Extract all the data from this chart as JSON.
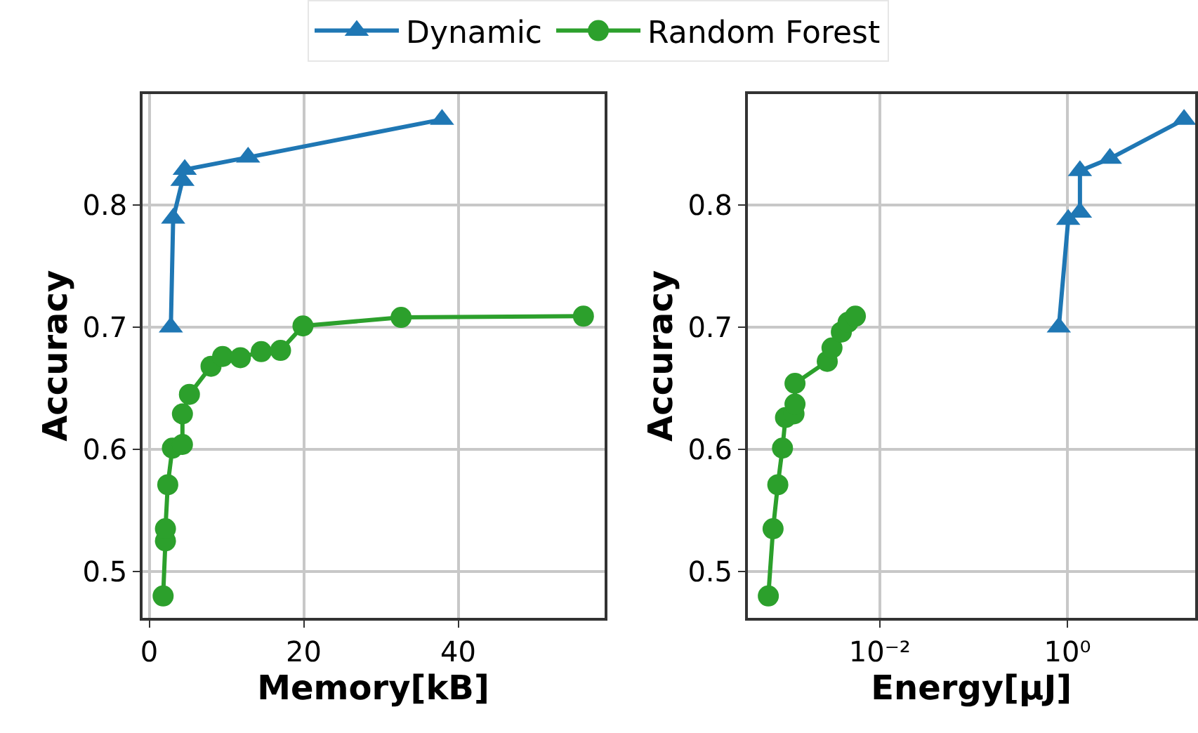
{
  "chart_data": [
    {
      "type": "line",
      "xlabel": "Memory[kB]",
      "ylabel": "Accuracy",
      "xlim": [
        -0.9,
        58.9
      ],
      "ylim": [
        0.462,
        0.891
      ],
      "xticks": [
        0,
        20,
        40
      ],
      "yticks": [
        0.5,
        0.6,
        0.7,
        0.8
      ],
      "grid": true,
      "legend": "top",
      "series": [
        {
          "name": "Dynamic",
          "color": "#1f77b4",
          "marker": "triangle",
          "x": [
            2.8,
            3.1,
            4.3,
            4.6,
            12.8,
            37.9
          ],
          "values": [
            0.7,
            0.789,
            0.82,
            0.829,
            0.839,
            0.87
          ]
        },
        {
          "name": "Random Forest",
          "color": "#2ca02c",
          "marker": "circle",
          "x": [
            1.8,
            2.1,
            2.1,
            2.4,
            3.0,
            4.3,
            4.3,
            5.2,
            8.0,
            9.5,
            11.8,
            14.5,
            17.0,
            19.9,
            32.6,
            56.2
          ],
          "values": [
            0.48,
            0.525,
            0.535,
            0.571,
            0.601,
            0.604,
            0.629,
            0.645,
            0.668,
            0.676,
            0.675,
            0.68,
            0.681,
            0.701,
            0.708,
            0.709
          ]
        }
      ]
    },
    {
      "type": "line",
      "xlabel": "Energy[μJ]",
      "ylabel": "Accuracy",
      "log": "x",
      "xlim": [
        0.00039,
        23
      ],
      "ylim": [
        0.462,
        0.891
      ],
      "xticks": [
        {
          "value": 0.01,
          "label": "10⁻²"
        },
        {
          "value": 1,
          "label": "10⁰"
        }
      ],
      "yticks": [
        0.5,
        0.6,
        0.7,
        0.8
      ],
      "grid": true,
      "series": [
        {
          "color": "#1f77b4",
          "marker": "triangle",
          "x": [
            0.81,
            1.02,
            1.36,
            1.36,
            2.84,
            17.5
          ],
          "values": [
            0.7,
            0.788,
            0.794,
            0.828,
            0.838,
            0.87
          ]
        },
        {
          "color": "#2ca02c",
          "marker": "circle",
          "x": [
            0.00065,
            0.00073,
            0.00082,
            0.00092,
            0.00099,
            0.00122,
            0.00125,
            0.00125,
            0.00276,
            0.0031,
            0.0039,
            0.0046,
            0.0055
          ],
          "values": [
            0.48,
            0.535,
            0.571,
            0.601,
            0.626,
            0.629,
            0.637,
            0.654,
            0.672,
            0.683,
            0.696,
            0.704,
            0.709
          ]
        }
      ]
    }
  ]
}
